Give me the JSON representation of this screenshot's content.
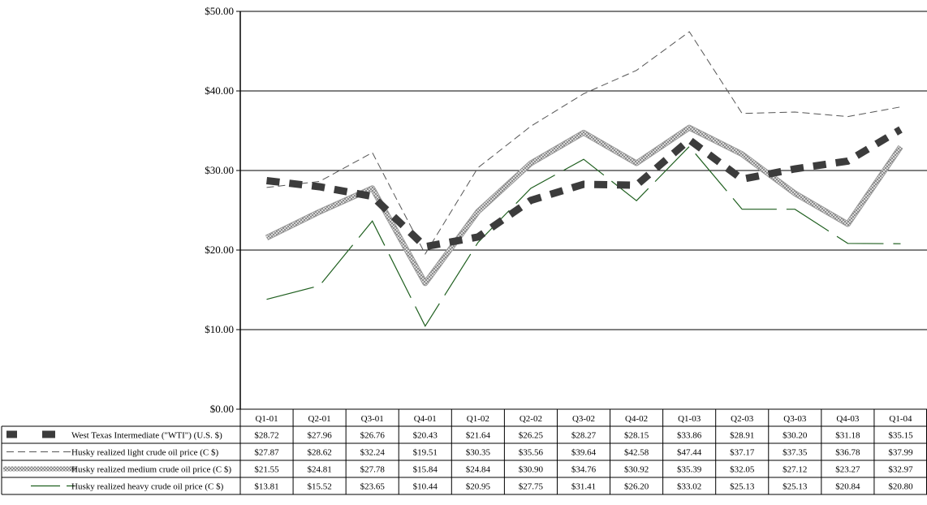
{
  "chart_data": {
    "type": "line",
    "title": "",
    "xlabel": "",
    "ylabel": "",
    "ylim": [
      0,
      50
    ],
    "y_ticks": [
      "$0.00",
      "$10.00",
      "$20.00",
      "$30.00",
      "$40.00",
      "$50.00"
    ],
    "categories": [
      "Q1-01",
      "Q2-01",
      "Q3-01",
      "Q4-01",
      "Q1-02",
      "Q2-02",
      "Q3-02",
      "Q4-02",
      "Q1-03",
      "Q2-03",
      "Q3-03",
      "Q4-03",
      "Q1-04"
    ],
    "grid": true,
    "legend": "data-table-bottom",
    "series": [
      {
        "name": "West Texas Intermediate (\"WTI\") (U.S. $)",
        "style": "thick-dash",
        "color": "#404040",
        "values": [
          28.72,
          27.96,
          26.76,
          20.43,
          21.64,
          26.25,
          28.27,
          28.15,
          33.86,
          28.91,
          30.2,
          31.18,
          35.15
        ],
        "labels": [
          "$28.72",
          "$27.96",
          "$26.76",
          "$20.43",
          "$21.64",
          "$26.25",
          "$28.27",
          "$28.15",
          "$33.86",
          "$28.91",
          "$30.20",
          "$31.18",
          "$35.15"
        ]
      },
      {
        "name": "Husky realized light crude oil price (C $)",
        "style": "thin-dash",
        "color": "#606060",
        "values": [
          27.87,
          28.62,
          32.24,
          19.51,
          30.35,
          35.56,
          39.64,
          42.58,
          47.44,
          37.17,
          37.35,
          36.78,
          37.99
        ],
        "labels": [
          "$27.87",
          "$28.62",
          "$32.24",
          "$19.51",
          "$30.35",
          "$35.56",
          "$39.64",
          "$42.58",
          "$47.44",
          "$37.17",
          "$37.35",
          "$36.78",
          "$37.99"
        ]
      },
      {
        "name": "Husky realized medium crude oil price (C $)",
        "style": "hatched",
        "color": "#b0b0b0",
        "values": [
          21.55,
          24.81,
          27.78,
          15.84,
          24.84,
          30.9,
          34.76,
          30.92,
          35.39,
          32.05,
          27.12,
          23.27,
          32.97
        ],
        "labels": [
          "$21.55",
          "$24.81",
          "$27.78",
          "$15.84",
          "$24.84",
          "$30.90",
          "$34.76",
          "$30.92",
          "$35.39",
          "$32.05",
          "$27.12",
          "$23.27",
          "$32.97"
        ]
      },
      {
        "name": "Husky realized heavy crude oil price (C $)",
        "style": "long-dash",
        "color": "#1f5f1f",
        "values": [
          13.81,
          15.52,
          23.65,
          10.44,
          20.95,
          27.75,
          31.41,
          26.2,
          33.02,
          25.13,
          25.13,
          20.84,
          20.8
        ],
        "labels": [
          "$13.81",
          "$15.52",
          "$23.65",
          "$10.44",
          "$20.95",
          "$27.75",
          "$31.41",
          "$26.20",
          "$33.02",
          "$25.13",
          "$25.13",
          "$20.84",
          "$20.80"
        ]
      }
    ]
  }
}
